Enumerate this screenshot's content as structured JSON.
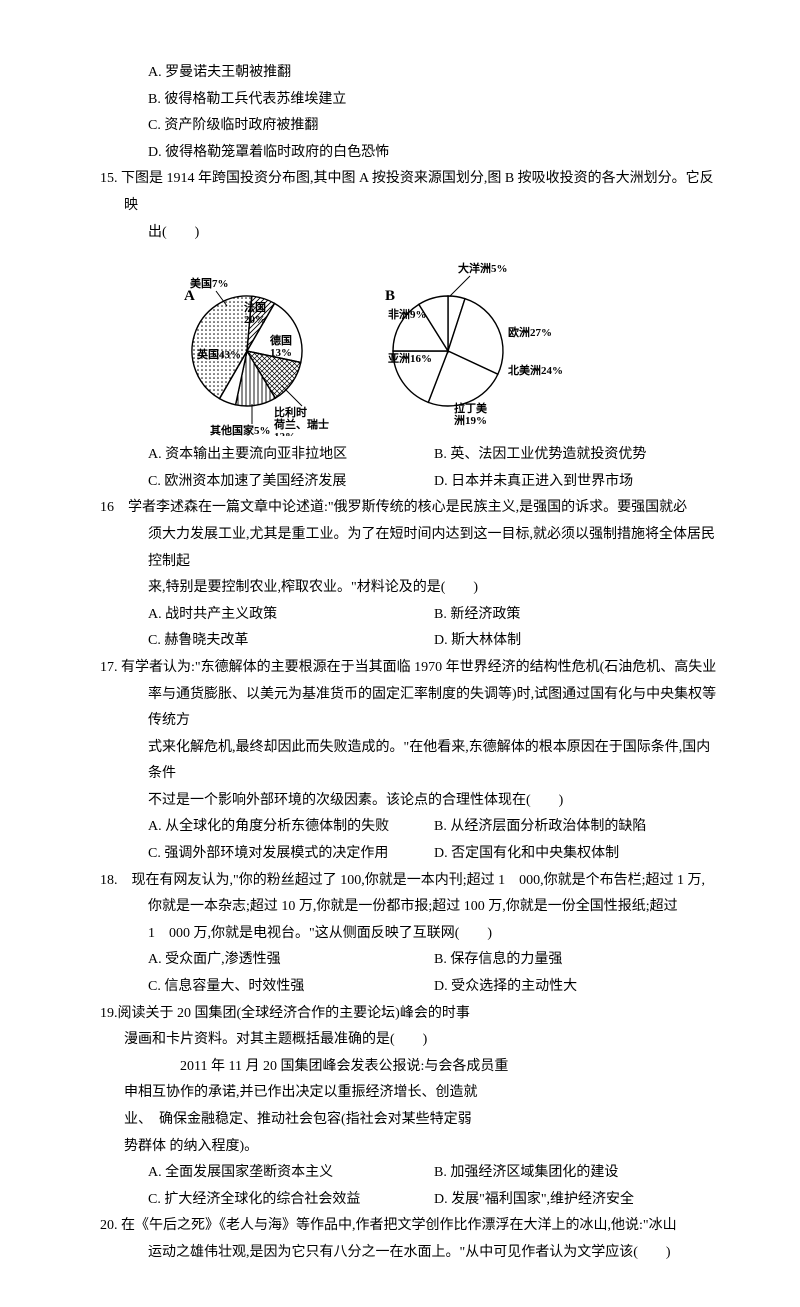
{
  "q14_options": {
    "a": "A. 罗曼诺夫王朝被推翻",
    "b": "B. 彼得格勒工兵代表苏维埃建立",
    "c": "C. 资产阶级临时政府被推翻",
    "d": "D. 彼得格勒笼罩着临时政府的白色恐怖"
  },
  "q15": {
    "stem": "15. 下图是 1914 年跨国投资分布图,其中图 A 按投资来源国划分,图 B 按吸收投资的各大洲划分。它反映",
    "stem2": "出(　　)",
    "options": {
      "a": "A. 资本输出主要流向亚非拉地区",
      "b": "B. 英、法因工业优势造就投资优势",
      "c": "C. 欧洲资本加速了美国经济发展",
      "d": "D. 日本并未真正进入到世界市场"
    },
    "chartA": {
      "title": "A",
      "slices": [
        {
          "label": "法国",
          "pct": "20%",
          "start": -60,
          "sweep": 72,
          "hatch": "none"
        },
        {
          "label": "德国",
          "pct": "13%",
          "start": 12,
          "sweep": 47,
          "hatch": "cross"
        },
        {
          "label": "比利时\n荷兰、瑞士",
          "pct": "12%",
          "start": 59,
          "sweep": 43,
          "hatch": "vert"
        },
        {
          "label": "其他国家",
          "pct": "5%",
          "start": 102,
          "sweep": 18,
          "hatch": "none"
        },
        {
          "label": "英国",
          "pct": "43%",
          "start": 120,
          "sweep": 155,
          "hatch": "dots"
        },
        {
          "label": "美国",
          "pct": "7%",
          "start": 275,
          "sweep": 25,
          "hatch": "diag"
        }
      ]
    },
    "chartB": {
      "title": "B",
      "slices": [
        {
          "label": "大洋洲",
          "pct": "5%",
          "start": -90,
          "sweep": 18,
          "hatch": "none"
        },
        {
          "label": "欧洲",
          "pct": "27%",
          "start": -72,
          "sweep": 97,
          "hatch": "none"
        },
        {
          "label": "北美洲",
          "pct": "24%",
          "start": 25,
          "sweep": 86,
          "hatch": "none"
        },
        {
          "label": "拉丁美洲",
          "pct": "19%",
          "start": 111,
          "sweep": 69,
          "hatch": "none"
        },
        {
          "label": "亚洲",
          "pct": "16%",
          "start": 180,
          "sweep": 58,
          "hatch": "none"
        },
        {
          "label": "非洲",
          "pct": "9%",
          "start": 238,
          "sweep": 32,
          "hatch": "none"
        }
      ]
    }
  },
  "q16": {
    "stem1": "16　学者李述森在一篇文章中论述道:\"俄罗斯传统的核心是民族主义,是强国的诉求。要强国就必",
    "stem2": "须大力发展工业,尤其是重工业。为了在短时间内达到这一目标,就必须以强制措施将全体居民控制起",
    "stem3": "来,特别是要控制农业,榨取农业。\"材料论及的是(　　)",
    "options": {
      "a": "A. 战时共产主义政策",
      "b": "B. 新经济政策",
      "c": "C. 赫鲁晓夫改革",
      "d": "D. 斯大林体制"
    }
  },
  "q17": {
    "stem1": "17. 有学者认为:\"东德解体的主要根源在于当其面临 1970 年世界经济的结构性危机(石油危机、高失业",
    "stem2": "率与通货膨胀、以美元为基准货币的固定汇率制度的失调等)时,试图通过国有化与中央集权等传统方",
    "stem3": "式来化解危机,最终却因此而失败造成的。\"在他看来,东德解体的根本原因在于国际条件,国内条件",
    "stem4": "不过是一个影响外部环境的次级因素。该论点的合理性体现在(　　)",
    "options": {
      "a": "A. 从全球化的角度分析东德体制的失败",
      "b": "B. 从经济层面分析政治体制的缺陷",
      "c": "C. 强调外部环境对发展模式的决定作用",
      "d": "D. 否定国有化和中央集权体制"
    }
  },
  "q18": {
    "stem1": "18.　现在有网友认为,\"你的粉丝超过了 100,你就是一本内刊;超过 1　000,你就是个布告栏;超过 1 万,",
    "stem2": "你就是一本杂志;超过 10 万,你就是一份都市报;超过 100 万,你就是一份全国性报纸;超过",
    "stem3": "1　000 万,你就是电视台。\"这从侧面反映了互联网(　　)",
    "options": {
      "a": "A. 受众面广,渗透性强",
      "b": "B. 保存信息的力量强",
      "c": "C. 信息容量大、时效性强",
      "d": "D. 受众选择的主动性大"
    }
  },
  "q19": {
    "stem1": "19.阅读关于 20 国集团(全球经济合作的主要论坛)峰会的时事",
    "stem2": "漫画和卡片资料。对其主题概括最准确的是(　　)",
    "card1": "　　　　2011 年 11 月 20 国集团峰会发表公报说:与会各成员重",
    "card2": "申相互协作的承诺,并已作出决定以重振经济增长、创造就",
    "card3": "业、　确保金融稳定、推动社会包容(指社会对某些特定弱",
    "card4": "势群体 的纳入程度)。",
    "options": {
      "a": "A. 全面发展国家垄断资本主义",
      "b": "B. 加强经济区域集团化的建设",
      "c": "C. 扩大经济全球化的综合社会效益",
      "d": "D. 发展\"福利国家\",维护经济安全"
    }
  },
  "q20": {
    "stem1": "20. 在《午后之死》《老人与海》等作品中,作者把文学创作比作漂浮在大洋上的冰山,他说:\"冰山",
    "stem2": "运动之雄伟壮观,是因为它只有八分之一在水面上。\"从中可见作者认为文学应该(　　)"
  }
}
